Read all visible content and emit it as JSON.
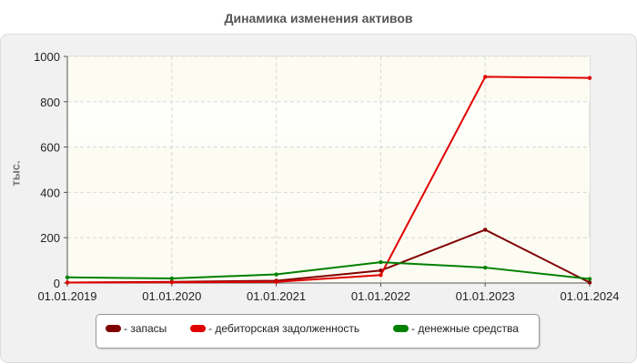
{
  "chart_data": {
    "type": "line",
    "title": "Динамика изменения активов",
    "ylabel": "тыс.",
    "xlabel": "",
    "categories": [
      "01.01.2019",
      "01.01.2020",
      "01.01.2021",
      "01.01.2022",
      "01.01.2023",
      "01.01.2024"
    ],
    "y_ticks": [
      "0",
      "200",
      "400",
      "600",
      "800",
      "1000"
    ],
    "ylim": [
      0,
      1000
    ],
    "grid": true,
    "legend_position": "bottom",
    "series": [
      {
        "name": "запасы",
        "label": "- запасы",
        "color": "#800000",
        "values": [
          2,
          5,
          10,
          55,
          235,
          2
        ]
      },
      {
        "name": "дебиторская задолженность",
        "label": "- дебиторская задолженность",
        "color": "#e00000",
        "values": [
          2,
          3,
          5,
          35,
          910,
          905
        ]
      },
      {
        "name": "денежные средства",
        "label": "- денежные средства",
        "color": "#008000",
        "values": [
          25,
          20,
          38,
          92,
          68,
          18
        ]
      }
    ]
  }
}
